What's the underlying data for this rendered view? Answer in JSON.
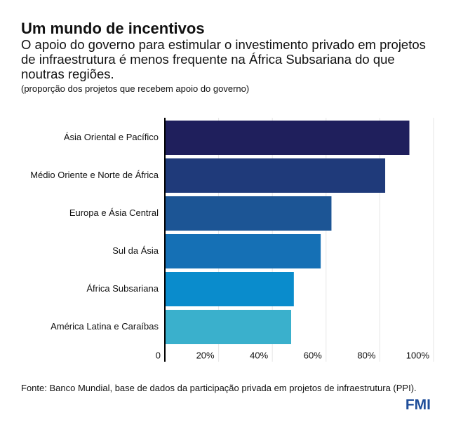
{
  "chart_data": {
    "type": "bar",
    "orientation": "horizontal",
    "title": "Um mundo de incentivos",
    "subtitle": "O apoio do governo para estimular o investimento privado em projetos de infraestrutura é menos frequente na África Subsariana do que noutras regiões.",
    "note": "(proporção dos projetos que recebem apoio do governo)",
    "categories": [
      "Ásia Oriental e Pacífico",
      "Médio Oriente e Norte de África",
      "Europa e Ásia Central",
      "Sul da Ásia",
      "África Subsariana",
      "América Latina e Caraíbas"
    ],
    "values": [
      91,
      82,
      62,
      58,
      48,
      47
    ],
    "colors": [
      "#1f1f5c",
      "#1f3a7a",
      "#1c5595",
      "#1570b5",
      "#0a8ccc",
      "#3ab0cc"
    ],
    "xlim": [
      0,
      100
    ],
    "xticks": [
      0,
      {
        "value": 20,
        "label": "20%"
      },
      {
        "value": 40,
        "label": "40%"
      },
      {
        "value": 60,
        "label": "60%"
      },
      {
        "value": 80,
        "label": "80%"
      },
      {
        "value": 100,
        "label": "100%"
      }
    ],
    "grid": true,
    "source": "Fonte: Banco Mundial, base de dados da participação privada em projetos de infraestrutura (PPI).",
    "logo": "FMI"
  }
}
